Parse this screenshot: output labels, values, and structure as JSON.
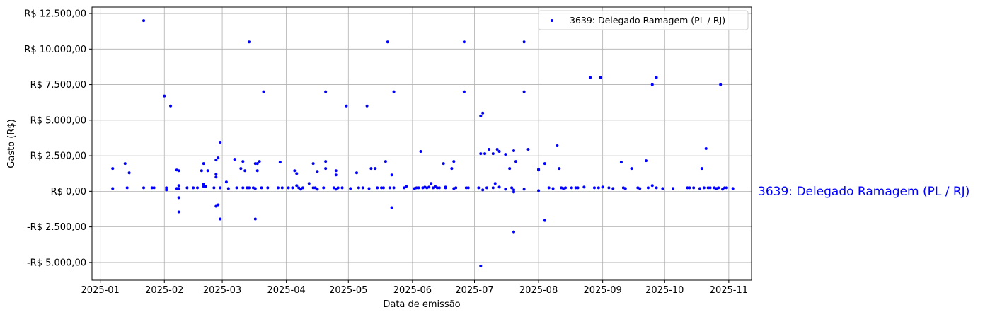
{
  "chart_data": {
    "type": "scatter",
    "title": "",
    "xlabel": "Data de emissão",
    "ylabel": "Gasto (R$)",
    "side_label": "3639: Delegado Ramagem (PL / RJ)",
    "legend_position": "top-right",
    "grid": true,
    "color": "#0000ff",
    "x_ticks": [
      "2025-01",
      "2025-02",
      "2025-03",
      "2025-04",
      "2025-05",
      "2025-06",
      "2025-07",
      "2025-08",
      "2025-09",
      "2025-10",
      "2025-11"
    ],
    "y_ticks": [
      {
        "value": 12500,
        "label": "R$ 12.500,00"
      },
      {
        "value": 10000,
        "label": "R$ 10.000,00"
      },
      {
        "value": 7500,
        "label": "R$ 7.500,00"
      },
      {
        "value": 5000,
        "label": "R$ 5.000,00"
      },
      {
        "value": 2500,
        "label": "R$ 2.500,00"
      },
      {
        "value": 0,
        "label": "R$ 0,00"
      },
      {
        "value": -2500,
        "label": "-R$ 2.500,00"
      },
      {
        "value": -5000,
        "label": "-R$ 5.000,00"
      }
    ],
    "xlim": [
      "2024-12-28",
      "2025-11-12"
    ],
    "ylim": [
      -6250,
      12950
    ],
    "series": [
      {
        "name": "3639: Delegado Ramagem (PL / RJ)",
        "points": [
          [
            "2025-01-07",
            1600
          ],
          [
            "2025-01-07",
            200
          ],
          [
            "2025-01-13",
            1950
          ],
          [
            "2025-01-14",
            250
          ],
          [
            "2025-01-15",
            1300
          ],
          [
            "2025-01-22",
            12000
          ],
          [
            "2025-01-22",
            250
          ],
          [
            "2025-01-26",
            250
          ],
          [
            "2025-01-27",
            250
          ],
          [
            "2025-02-01",
            6700
          ],
          [
            "2025-02-02",
            100
          ],
          [
            "2025-02-02",
            250
          ],
          [
            "2025-02-04",
            6000
          ],
          [
            "2025-02-07",
            1500
          ],
          [
            "2025-02-07",
            200
          ],
          [
            "2025-02-08",
            1450
          ],
          [
            "2025-02-08",
            400
          ],
          [
            "2025-02-08",
            200
          ],
          [
            "2025-02-08",
            -450
          ],
          [
            "2025-02-08",
            -1450
          ],
          [
            "2025-02-12",
            250
          ],
          [
            "2025-02-15",
            250
          ],
          [
            "2025-02-17",
            250
          ],
          [
            "2025-02-19",
            1450
          ],
          [
            "2025-02-20",
            350
          ],
          [
            "2025-02-20",
            500
          ],
          [
            "2025-02-20",
            1950
          ],
          [
            "2025-02-21",
            350
          ],
          [
            "2025-02-22",
            1450
          ],
          [
            "2025-02-25",
            250
          ],
          [
            "2025-02-26",
            1000
          ],
          [
            "2025-02-26",
            1200
          ],
          [
            "2025-02-26",
            2200
          ],
          [
            "2025-02-26",
            -1050
          ],
          [
            "2025-02-27",
            2350
          ],
          [
            "2025-02-27",
            -950
          ],
          [
            "2025-02-28",
            3450
          ],
          [
            "2025-02-28",
            250
          ],
          [
            "2025-02-28",
            -1950
          ],
          [
            "2025-03-03",
            650
          ],
          [
            "2025-03-04",
            200
          ],
          [
            "2025-03-07",
            2250
          ],
          [
            "2025-03-08",
            250
          ],
          [
            "2025-03-10",
            1600
          ],
          [
            "2025-03-11",
            250
          ],
          [
            "2025-03-11",
            2100
          ],
          [
            "2025-03-12",
            1450
          ],
          [
            "2025-03-13",
            250
          ],
          [
            "2025-03-14",
            10500
          ],
          [
            "2025-03-14",
            250
          ],
          [
            "2025-03-16",
            250
          ],
          [
            "2025-03-17",
            1950
          ],
          [
            "2025-03-17",
            200
          ],
          [
            "2025-03-17",
            -1950
          ],
          [
            "2025-03-18",
            1450
          ],
          [
            "2025-03-18",
            1950
          ],
          [
            "2025-03-19",
            2100
          ],
          [
            "2025-03-20",
            250
          ],
          [
            "2025-03-21",
            7000
          ],
          [
            "2025-03-23",
            250
          ],
          [
            "2025-03-28",
            250
          ],
          [
            "2025-03-29",
            2050
          ],
          [
            "2025-03-30",
            250
          ],
          [
            "2025-04-02",
            250
          ],
          [
            "2025-04-04",
            250
          ],
          [
            "2025-04-05",
            1450
          ],
          [
            "2025-04-06",
            1250
          ],
          [
            "2025-04-06",
            400
          ],
          [
            "2025-04-07",
            250
          ],
          [
            "2025-04-08",
            150
          ],
          [
            "2025-04-09",
            250
          ],
          [
            "2025-04-12",
            550
          ],
          [
            "2025-04-14",
            250
          ],
          [
            "2025-04-14",
            1950
          ],
          [
            "2025-04-15",
            250
          ],
          [
            "2025-04-16",
            1400
          ],
          [
            "2025-04-16",
            150
          ],
          [
            "2025-04-19",
            250
          ],
          [
            "2025-04-20",
            7000
          ],
          [
            "2025-04-20",
            1600
          ],
          [
            "2025-04-20",
            2100
          ],
          [
            "2025-04-24",
            250
          ],
          [
            "2025-04-25",
            1450
          ],
          [
            "2025-04-25",
            1150
          ],
          [
            "2025-04-25",
            150
          ],
          [
            "2025-04-26",
            250
          ],
          [
            "2025-04-28",
            250
          ],
          [
            "2025-04-30",
            6000
          ],
          [
            "2025-05-02",
            200
          ],
          [
            "2025-05-05",
            1300
          ],
          [
            "2025-05-06",
            250
          ],
          [
            "2025-05-08",
            250
          ],
          [
            "2025-05-10",
            6000
          ],
          [
            "2025-05-11",
            200
          ],
          [
            "2025-05-12",
            1600
          ],
          [
            "2025-05-14",
            1600
          ],
          [
            "2025-05-15",
            250
          ],
          [
            "2025-05-17",
            250
          ],
          [
            "2025-05-18",
            250
          ],
          [
            "2025-05-19",
            2100
          ],
          [
            "2025-05-20",
            10500
          ],
          [
            "2025-05-21",
            250
          ],
          [
            "2025-05-22",
            1150
          ],
          [
            "2025-05-22",
            -1150
          ],
          [
            "2025-05-23",
            7000
          ],
          [
            "2025-05-23",
            250
          ],
          [
            "2025-05-28",
            250
          ],
          [
            "2025-05-29",
            350
          ],
          [
            "2025-06-02",
            200
          ],
          [
            "2025-06-03",
            250
          ],
          [
            "2025-06-04",
            250
          ],
          [
            "2025-06-05",
            2800
          ],
          [
            "2025-06-06",
            250
          ],
          [
            "2025-06-07",
            300
          ],
          [
            "2025-06-08",
            250
          ],
          [
            "2025-06-09",
            300
          ],
          [
            "2025-06-10",
            550
          ],
          [
            "2025-06-11",
            250
          ],
          [
            "2025-06-12",
            350
          ],
          [
            "2025-06-13",
            250
          ],
          [
            "2025-06-14",
            250
          ],
          [
            "2025-06-16",
            1950
          ],
          [
            "2025-06-17",
            250
          ],
          [
            "2025-06-17",
            300
          ],
          [
            "2025-06-20",
            1600
          ],
          [
            "2025-06-21",
            2100
          ],
          [
            "2025-06-21",
            200
          ],
          [
            "2025-06-22",
            250
          ],
          [
            "2025-06-26",
            7000
          ],
          [
            "2025-06-26",
            10500
          ],
          [
            "2025-06-27",
            250
          ],
          [
            "2025-06-28",
            250
          ],
          [
            "2025-07-03",
            250
          ],
          [
            "2025-07-04",
            2650
          ],
          [
            "2025-07-04",
            5300
          ],
          [
            "2025-07-04",
            -5250
          ],
          [
            "2025-07-05",
            5500
          ],
          [
            "2025-07-05",
            100
          ],
          [
            "2025-07-06",
            2650
          ],
          [
            "2025-07-07",
            250
          ],
          [
            "2025-07-08",
            2950
          ],
          [
            "2025-07-10",
            2650
          ],
          [
            "2025-07-10",
            250
          ],
          [
            "2025-07-11",
            550
          ],
          [
            "2025-07-12",
            2950
          ],
          [
            "2025-07-13",
            2800
          ],
          [
            "2025-07-13",
            300
          ],
          [
            "2025-07-16",
            2600
          ],
          [
            "2025-07-16",
            150
          ],
          [
            "2025-07-18",
            1600
          ],
          [
            "2025-07-19",
            250
          ],
          [
            "2025-07-20",
            2850
          ],
          [
            "2025-07-20",
            -2850
          ],
          [
            "2025-07-20",
            100
          ],
          [
            "2025-07-20",
            -50
          ],
          [
            "2025-07-21",
            2100
          ],
          [
            "2025-07-25",
            150
          ],
          [
            "2025-07-25",
            10500
          ],
          [
            "2025-07-25",
            7000
          ],
          [
            "2025-07-27",
            2950
          ],
          [
            "2025-08-01",
            1500
          ],
          [
            "2025-08-01",
            1550
          ],
          [
            "2025-08-01",
            50
          ],
          [
            "2025-08-04",
            1950
          ],
          [
            "2025-08-04",
            -2050
          ],
          [
            "2025-08-06",
            250
          ],
          [
            "2025-08-08",
            200
          ],
          [
            "2025-08-10",
            3200
          ],
          [
            "2025-08-11",
            1600
          ],
          [
            "2025-08-12",
            250
          ],
          [
            "2025-08-13",
            200
          ],
          [
            "2025-08-14",
            250
          ],
          [
            "2025-08-17",
            250
          ],
          [
            "2025-08-19",
            250
          ],
          [
            "2025-08-20",
            250
          ],
          [
            "2025-08-23",
            300
          ],
          [
            "2025-08-26",
            8000
          ],
          [
            "2025-08-28",
            250
          ],
          [
            "2025-08-30",
            250
          ],
          [
            "2025-08-31",
            8000
          ],
          [
            "2025-09-01",
            300
          ],
          [
            "2025-09-04",
            250
          ],
          [
            "2025-09-06",
            200
          ],
          [
            "2025-09-10",
            2050
          ],
          [
            "2025-09-11",
            250
          ],
          [
            "2025-09-12",
            200
          ],
          [
            "2025-09-15",
            1600
          ],
          [
            "2025-09-18",
            250
          ],
          [
            "2025-09-19",
            200
          ],
          [
            "2025-09-22",
            2150
          ],
          [
            "2025-09-23",
            250
          ],
          [
            "2025-09-25",
            400
          ],
          [
            "2025-09-25",
            7500
          ],
          [
            "2025-09-27",
            8000
          ],
          [
            "2025-09-27",
            250
          ],
          [
            "2025-09-30",
            200
          ],
          [
            "2025-10-05",
            200
          ],
          [
            "2025-10-12",
            250
          ],
          [
            "2025-10-13",
            250
          ],
          [
            "2025-10-15",
            250
          ],
          [
            "2025-10-18",
            200
          ],
          [
            "2025-10-19",
            1600
          ],
          [
            "2025-10-20",
            250
          ],
          [
            "2025-10-21",
            3000
          ],
          [
            "2025-10-22",
            250
          ],
          [
            "2025-10-23",
            250
          ],
          [
            "2025-10-25",
            250
          ],
          [
            "2025-10-26",
            200
          ],
          [
            "2025-10-27",
            250
          ],
          [
            "2025-10-28",
            7500
          ],
          [
            "2025-10-29",
            150
          ],
          [
            "2025-10-30",
            250
          ],
          [
            "2025-10-31",
            250
          ],
          [
            "2025-11-03",
            200
          ]
        ]
      }
    ]
  }
}
